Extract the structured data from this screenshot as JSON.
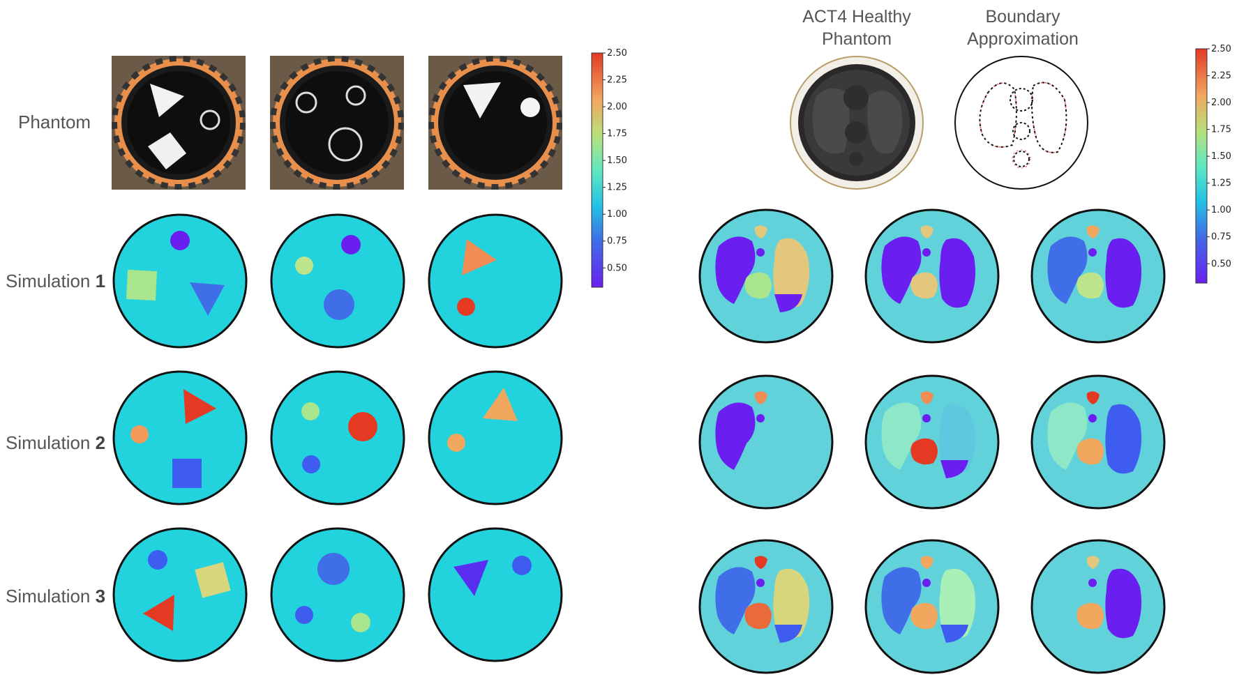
{
  "left_panel": {
    "row_labels": [
      {
        "prefix": "Phantom",
        "number": ""
      },
      {
        "prefix": "Simulation ",
        "number": "1"
      },
      {
        "prefix": "Simulation ",
        "number": "2"
      },
      {
        "prefix": "Simulation ",
        "number": "3"
      }
    ],
    "colorbar": {
      "ticks": [
        "2.50",
        "2.25",
        "2.00",
        "1.75",
        "1.50",
        "1.25",
        "1.00",
        "0.75",
        "0.50"
      ]
    }
  },
  "right_panel": {
    "headers": [
      {
        "line1": "ACT4 Healthy",
        "line2": "Phantom"
      },
      {
        "line1": "Boundary",
        "line2": "Approximation"
      }
    ],
    "colorbar": {
      "ticks": [
        "2.50",
        "2.25",
        "2.00",
        "1.75",
        "1.50",
        "1.25",
        "1.00",
        "0.75",
        "0.50"
      ]
    }
  },
  "colors": {
    "background_left": "#22d3de",
    "background_right": "#62d2da",
    "purple": "#6a1ff0",
    "blue": "#3f6ee8",
    "red": "#e43a24",
    "orange": "#f2a75f",
    "yellow": "#e2c77c",
    "green": "#a8e58c"
  }
}
